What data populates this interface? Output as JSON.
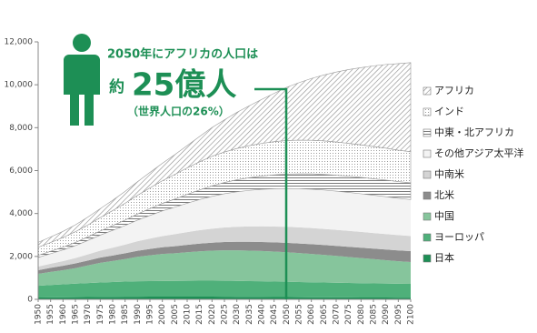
{
  "chart_data": {
    "type": "stacked-area",
    "annotation": {
      "line1": "2050年にアフリカの人口は",
      "prefix": "約",
      "headline": "25億人",
      "note": "（世界人口の26%）"
    },
    "x": [
      1950,
      1955,
      1960,
      1965,
      1970,
      1975,
      1980,
      1985,
      1990,
      1995,
      2000,
      2005,
      2010,
      2015,
      2020,
      2025,
      2030,
      2035,
      2040,
      2045,
      2050,
      2055,
      2060,
      2065,
      2070,
      2075,
      2080,
      2085,
      2090,
      2095,
      2100
    ],
    "xlim": [
      1950,
      2100
    ],
    "xticks": [
      1950,
      1955,
      1960,
      1965,
      1970,
      1975,
      1980,
      1985,
      1990,
      1995,
      2000,
      2005,
      2010,
      2015,
      2020,
      2025,
      2030,
      2035,
      2040,
      2045,
      2050,
      2055,
      2060,
      2065,
      2070,
      2075,
      2080,
      2085,
      2090,
      2095,
      2100
    ],
    "ylim": [
      0,
      12000
    ],
    "yticks": [
      0,
      {
        "value": 2000,
        "label": "2,000"
      },
      {
        "value": 4000,
        "label": "4,000"
      },
      {
        "value": 6000,
        "label": "6,000"
      },
      {
        "value": 8000,
        "label": "8,000"
      },
      {
        "value": 10000,
        "label": "10,000"
      },
      {
        "value": 12000,
        "label": "12,000"
      }
    ],
    "series": [
      {
        "name": "日本",
        "color": "#1d8f55",
        "values": [
          83,
          89,
          94,
          99,
          104,
          112,
          117,
          121,
          124,
          125,
          127,
          128,
          128,
          127,
          125,
          122,
          119,
          115,
          111,
          107,
          104,
          100,
          97,
          94,
          91,
          88,
          86,
          84,
          83,
          82,
          81
        ]
      },
      {
        "name": "ヨーロッパ",
        "color": "#4fb07a",
        "values": [
          550,
          580,
          605,
          635,
          655,
          675,
          690,
          705,
          720,
          725,
          727,
          730,
          738,
          742,
          745,
          744,
          740,
          735,
          730,
          722,
          715,
          707,
          700,
          692,
          684,
          676,
          668,
          660,
          652,
          645,
          638
        ]
      },
      {
        "name": "中国",
        "color": "#86c59c",
        "values": [
          554,
          610,
          660,
          720,
          818,
          915,
          980,
          1050,
          1140,
          1200,
          1260,
          1290,
          1330,
          1370,
          1400,
          1420,
          1425,
          1420,
          1410,
          1395,
          1375,
          1350,
          1320,
          1285,
          1250,
          1210,
          1170,
          1130,
          1090,
          1050,
          1020
        ]
      },
      {
        "name": "北米",
        "color": "#8c8c8c",
        "values": [
          172,
          187,
          204,
          219,
          231,
          243,
          255,
          269,
          280,
          297,
          313,
          328,
          344,
          357,
          371,
          385,
          398,
          410,
          420,
          430,
          438,
          446,
          453,
          460,
          467,
          474,
          481,
          488,
          495,
          502,
          508
        ]
      },
      {
        "name": "中南米",
        "color": "#d4d4d4",
        "values": [
          168,
          191,
          220,
          252,
          288,
          324,
          364,
          402,
          442,
          482,
          522,
          559,
          595,
          626,
          653,
          677,
          698,
          715,
          730,
          740,
          748,
          752,
          753,
          752,
          748,
          743,
          737,
          730,
          722,
          714,
          705
        ]
      },
      {
        "name": "その他アジア太平洋",
        "color": "#f3f3f3",
        "values": [
          425,
          468,
          519,
          578,
          646,
          723,
          808,
          893,
          986,
          1080,
          1173,
          1258,
          1343,
          1428,
          1505,
          1573,
          1632,
          1683,
          1726,
          1760,
          1785,
          1802,
          1811,
          1811,
          1802,
          1794,
          1777,
          1760,
          1743,
          1717,
          1700
        ]
      },
      {
        "name": "中東・北アフリカ",
        "color": "#7a7a7a",
        "pattern": "hlines",
        "values": [
          100,
          115,
          130,
          150,
          170,
          195,
          225,
          255,
          285,
          320,
          350,
          380,
          415,
          450,
          490,
          525,
          560,
          590,
          620,
          650,
          675,
          695,
          715,
          730,
          745,
          755,
          765,
          770,
          775,
          778,
          780
        ]
      },
      {
        "name": "インド",
        "color": "#9a9a9a",
        "pattern": "dots",
        "values": [
          376,
          409,
          450,
          499,
          555,
          623,
          698,
          784,
          873,
          964,
          1057,
          1148,
          1234,
          1310,
          1380,
          1420,
          1460,
          1495,
          1520,
          1545,
          1560,
          1565,
          1565,
          1560,
          1545,
          1530,
          1515,
          1500,
          1485,
          1465,
          1450
        ]
      },
      {
        "name": "アフリカ",
        "color": "#8a8a8a",
        "pattern": "diag",
        "values": [
          228,
          255,
          285,
          320,
          365,
          417,
          478,
          551,
          630,
          720,
          810,
          920,
          1040,
          1180,
          1340,
          1500,
          1680,
          1860,
          2050,
          2250,
          2480,
          2680,
          2880,
          3070,
          3260,
          3440,
          3600,
          3760,
          3900,
          4030,
          4150
        ]
      }
    ]
  }
}
